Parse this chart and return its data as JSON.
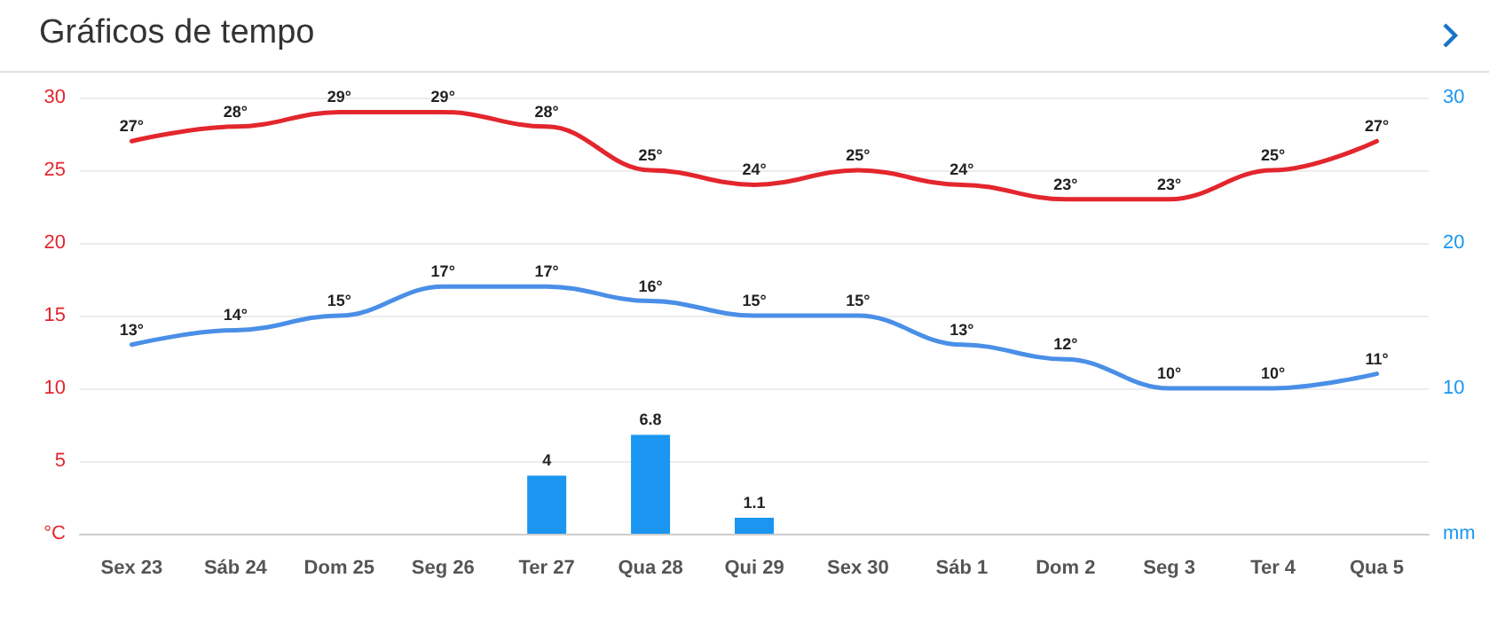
{
  "chart_data": {
    "type": "line",
    "title": "Gráficos de tempo",
    "categories": [
      "Sex 23",
      "Sáb 24",
      "Dom 25",
      "Seg 26",
      "Ter 27",
      "Qua 28",
      "Qui 29",
      "Sex 30",
      "Sáb 1",
      "Dom 2",
      "Seg 3",
      "Ter 4",
      "Qua 5"
    ],
    "series": [
      {
        "color": "#e3262d",
        "values": [
          27,
          28,
          29,
          29,
          28,
          25,
          24,
          25,
          24,
          23,
          23,
          25,
          27
        ],
        "value_labels": [
          "27°",
          "28°",
          "29°",
          "29°",
          "28°",
          "25°",
          "24°",
          "25°",
          "24°",
          "23°",
          "23°",
          "25°",
          "27°"
        ]
      },
      {
        "color": "#4a8fe7",
        "values": [
          13,
          14,
          15,
          17,
          17,
          16,
          15,
          15,
          13,
          12,
          10,
          10,
          11
        ],
        "value_labels": [
          "13°",
          "14°",
          "15°",
          "17°",
          "17°",
          "16°",
          "15°",
          "15°",
          "13°",
          "12°",
          "10°",
          "10°",
          "11°"
        ]
      },
      {
        "type": "bar",
        "axis": "y2",
        "color": "#1a96f0",
        "values": [
          null,
          null,
          null,
          null,
          4,
          6.8,
          1.1,
          null,
          null,
          null,
          null,
          null,
          null
        ],
        "value_labels": [
          null,
          null,
          null,
          null,
          "4",
          "6.8",
          "1.1",
          null,
          null,
          null,
          null,
          null,
          null
        ]
      }
    ],
    "ylim": [
      0,
      30
    ],
    "yticks": [
      {
        "value": 0,
        "label": "°C"
      },
      5,
      10,
      15,
      20,
      25,
      30
    ],
    "y2lim": [
      0,
      30
    ],
    "y2ticks": [
      {
        "value": 0,
        "label": "mm"
      },
      10,
      20,
      30
    ],
    "grid": "y",
    "marker": "none",
    "line_style": "solid"
  }
}
